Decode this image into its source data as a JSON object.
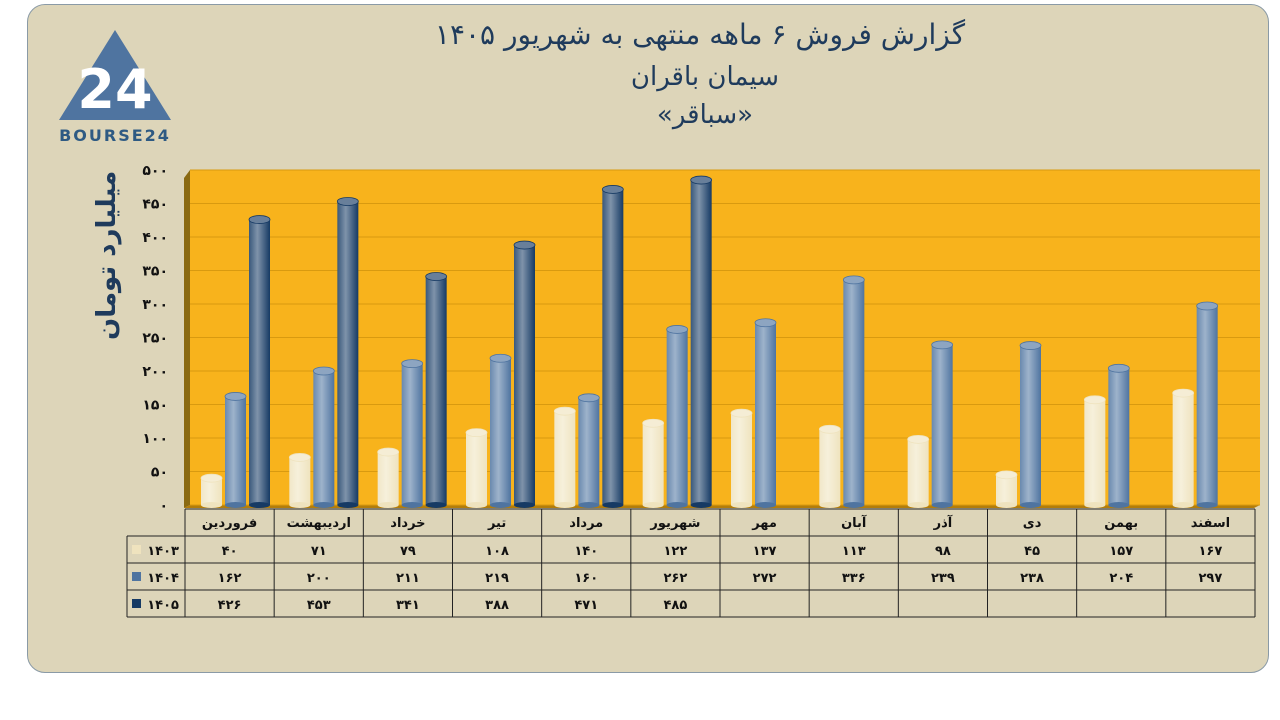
{
  "header": {
    "title_line1": "گزارش  فروش ۶ ماهه منتهی به شهریور ۱۴۰۵",
    "title_line2": "سیمان باقران",
    "title_line3": "«سباقر»"
  },
  "logo": {
    "text": "BOURSE24",
    "mark": "24"
  },
  "colors": {
    "plot_bg": "#f8b31c",
    "card_bg": "#ddd5b9",
    "series_1403": "#efe3be",
    "series_1404": "#4f74a0",
    "series_1405": "#163a64",
    "text_dark": "#1f3b5c"
  },
  "chart_data": {
    "type": "bar",
    "categories": [
      "فروردین",
      "اردیبهشت",
      "خرداد",
      "تیر",
      "مرداد",
      "شهریور",
      "مهر",
      "آبان",
      "آذر",
      "دی",
      "بهمن",
      "اسفند"
    ],
    "ylabel": "میلیارد تومان",
    "ylim": [
      0,
      500
    ],
    "yticks": [
      0,
      50,
      100,
      150,
      200,
      250,
      300,
      350,
      400,
      450,
      500
    ],
    "ytick_labels": [
      "۰",
      "۵۰",
      "۱۰۰",
      "۱۵۰",
      "۲۰۰",
      "۲۵۰",
      "۳۰۰",
      "۳۵۰",
      "۴۰۰",
      "۴۵۰",
      "۵۰۰"
    ],
    "grid": true,
    "series": [
      {
        "name": "۱۴۰۳",
        "values": [
          40,
          71,
          79,
          108,
          140,
          122,
          137,
          113,
          98,
          45,
          157,
          167
        ],
        "labels": [
          "۴۰",
          "۷۱",
          "۷۹",
          "۱۰۸",
          "۱۴۰",
          "۱۲۲",
          "۱۳۷",
          "۱۱۳",
          "۹۸",
          "۴۵",
          "۱۵۷",
          "۱۶۷"
        ]
      },
      {
        "name": "۱۴۰۴",
        "values": [
          162,
          200,
          211,
          219,
          160,
          262,
          272,
          336,
          239,
          238,
          204,
          297
        ],
        "labels": [
          "۱۶۲",
          "۲۰۰",
          "۲۱۱",
          "۲۱۹",
          "۱۶۰",
          "۲۶۲",
          "۲۷۲",
          "۳۳۶",
          "۲۳۹",
          "۲۳۸",
          "۲۰۴",
          "۲۹۷"
        ]
      },
      {
        "name": "۱۴۰۵",
        "values": [
          426,
          453,
          341,
          388,
          471,
          485,
          null,
          null,
          null,
          null,
          null,
          null
        ],
        "labels": [
          "۴۲۶",
          "۴۵۳",
          "۳۴۱",
          "۳۸۸",
          "۴۷۱",
          "۴۸۵",
          "",
          "",
          "",
          "",
          "",
          ""
        ]
      }
    ]
  }
}
